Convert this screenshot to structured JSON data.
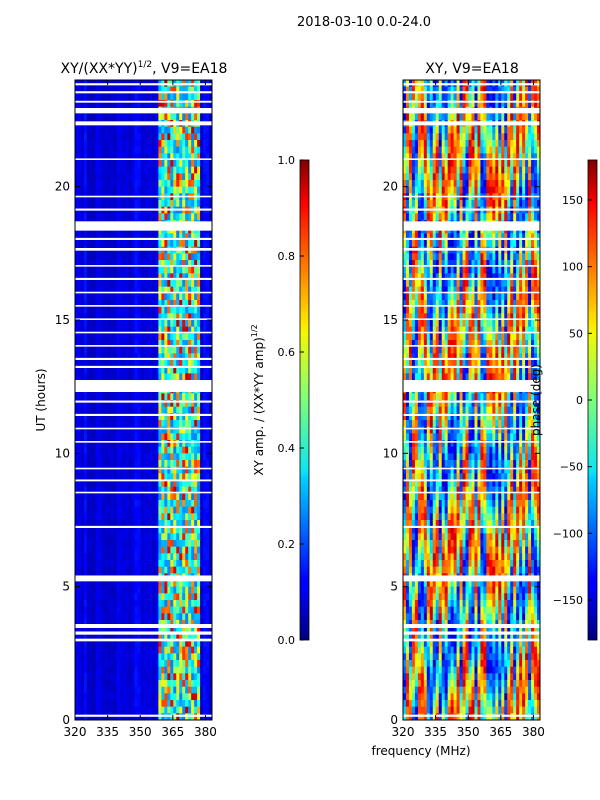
{
  "suptitle": "2018-03-10 0.0-24.0",
  "shared_xlabel": "frequency (MHz)",
  "colors": {
    "background": "#ffffff",
    "axis": "#000000",
    "blank_rows": "#ffffff",
    "base_amp": "#00008b"
  },
  "chart_data": [
    {
      "type": "heatmap",
      "title": "XY/(XX*YY)^1/2, V9=EA18",
      "title_main": "XY/(XX*YY)",
      "title_sup": "1/2",
      "title_rest": ", V9=EA18",
      "xlabel": "",
      "ylabel": "UT (hours)",
      "xlim": [
        320,
        383
      ],
      "ylim": [
        0,
        24
      ],
      "x_ticks": [
        "320",
        "335",
        "350",
        "365",
        "380"
      ],
      "y_ticks": [
        "0",
        "5",
        "10",
        "15",
        "20"
      ],
      "colormap": "jet",
      "colorbar": {
        "label_main": "XY amp. / (XX*YY amp)",
        "label_sup": "1/2",
        "range": [
          0.0,
          1.0
        ],
        "ticks": [
          "0.0",
          "0.2",
          "0.4",
          "0.6",
          "0.8",
          "1.0"
        ]
      },
      "description_of_values": "Mostly ~0.05-0.1 below 357 MHz; bright RFI/correlated band between ~358-378 MHz with values up to ~0.9"
    },
    {
      "type": "heatmap",
      "title": "XY, V9=EA18",
      "xlabel": "frequency (MHz)",
      "ylabel": "",
      "xlim": [
        320,
        383
      ],
      "ylim": [
        0,
        24
      ],
      "x_ticks": [
        "320",
        "335",
        "350",
        "365",
        "380"
      ],
      "y_ticks": [
        "0",
        "5",
        "10",
        "15",
        "20"
      ],
      "colormap": "jet",
      "colorbar": {
        "label": "phase (deg)",
        "range": [
          -180,
          180
        ],
        "ticks": [
          "−150",
          "−100",
          "−50",
          "0",
          "50",
          "100",
          "150"
        ]
      },
      "description_of_values": "Phase ranging -180 to 180 deg, noisy stripes across frequency"
    }
  ],
  "blank_time_bands": [
    [
      0.12,
      0.2
    ],
    [
      2.95,
      3.05
    ],
    [
      3.2,
      3.32
    ],
    [
      3.45,
      3.6
    ],
    [
      5.2,
      5.42
    ],
    [
      7.2,
      7.28
    ],
    [
      8.5,
      8.56
    ],
    [
      8.95,
      9.02
    ],
    [
      9.4,
      9.46
    ],
    [
      10.4,
      10.46
    ],
    [
      10.9,
      10.96
    ],
    [
      11.4,
      11.48
    ],
    [
      11.9,
      11.98
    ],
    [
      12.3,
      12.75
    ],
    [
      13.2,
      13.28
    ],
    [
      13.5,
      13.58
    ],
    [
      14.0,
      14.06
    ],
    [
      14.5,
      14.56
    ],
    [
      15.0,
      15.06
    ],
    [
      15.5,
      15.56
    ],
    [
      16.0,
      16.06
    ],
    [
      16.5,
      16.58
    ],
    [
      17.0,
      17.06
    ],
    [
      17.6,
      17.7
    ],
    [
      18.0,
      18.08
    ],
    [
      18.35,
      18.7
    ],
    [
      19.1,
      19.18
    ],
    [
      19.6,
      19.66
    ],
    [
      21.0,
      21.06
    ],
    [
      22.3,
      22.45
    ],
    [
      22.75,
      22.95
    ],
    [
      23.15,
      23.22
    ],
    [
      23.5,
      23.58
    ],
    [
      23.8,
      23.88
    ]
  ]
}
